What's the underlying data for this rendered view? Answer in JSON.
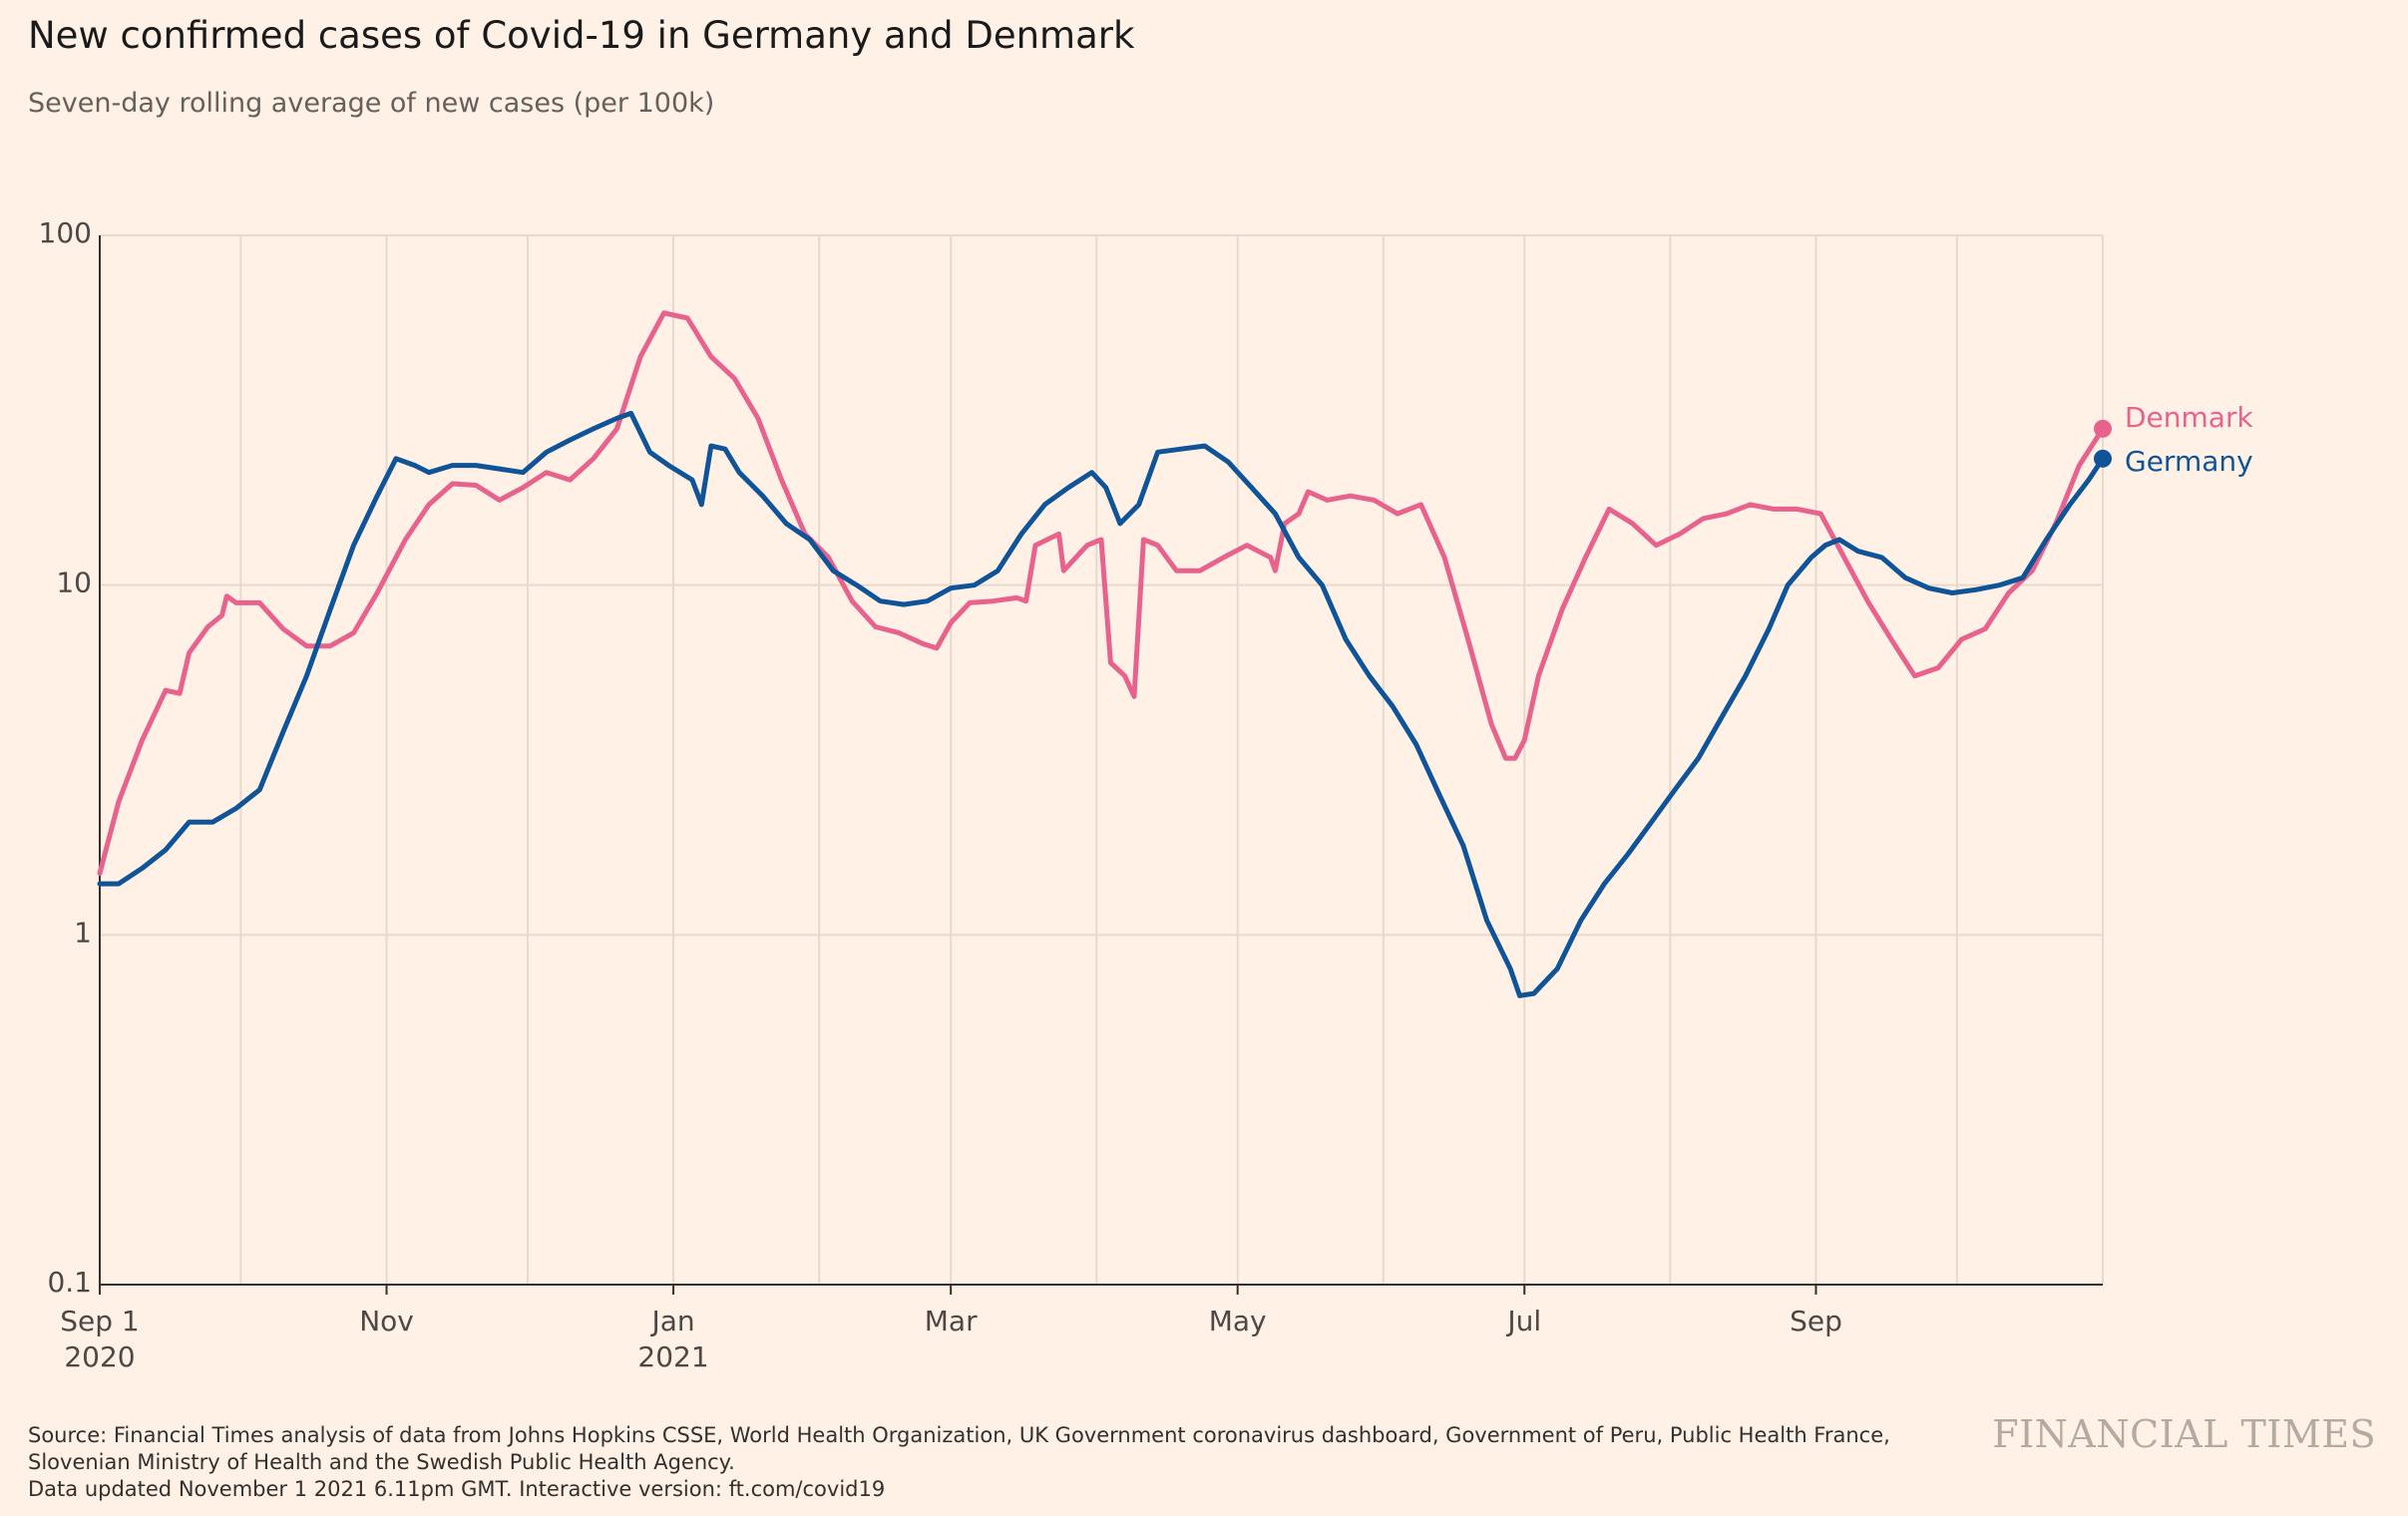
{
  "title": "New confirmed cases of Covid-19 in Germany and Denmark",
  "subtitle": "Seven-day rolling average of new cases (per 100k)",
  "source": "Source: Financial Times analysis of data from Johns Hopkins CSSE, World Health Organization, UK Government coronavirus dashboard, Government of Peru, Public Health France, Slovenian Ministry of Health and the Swedish Public Health Agency.",
  "updated": "Data updated November 1 2021 6.11pm GMT. Interactive version: ft.com/covid19",
  "brand": "FINANCIAL TIMES",
  "colors": {
    "germany": "#0f5499",
    "denmark": "#e8628e",
    "grid": "#e6d9ce",
    "axis": "#33302e",
    "tick_text": "#4d4845",
    "background": "#fff1e5"
  },
  "chart_data": {
    "type": "line",
    "x_type": "date",
    "xlim": [
      "2020-09-01",
      "2021-11-01"
    ],
    "y_scale": "log",
    "ylim": [
      0.1,
      100
    ],
    "y_ticks": [
      {
        "value": 100,
        "label": "100"
      },
      {
        "value": 10,
        "label": "10"
      },
      {
        "value": 1,
        "label": "1"
      },
      {
        "value": 0.1,
        "label": "0.1"
      }
    ],
    "x_ticks": [
      {
        "date": "2020-09-01",
        "label": "Sep 1",
        "sub": "2020"
      },
      {
        "date": "2020-11-01",
        "label": "Nov",
        "sub": ""
      },
      {
        "date": "2021-01-01",
        "label": "Jan",
        "sub": "2021"
      },
      {
        "date": "2021-03-01",
        "label": "Mar",
        "sub": ""
      },
      {
        "date": "2021-05-01",
        "label": "May",
        "sub": ""
      },
      {
        "date": "2021-07-01",
        "label": "Jul",
        "sub": ""
      },
      {
        "date": "2021-09-01",
        "label": "Sep",
        "sub": ""
      }
    ],
    "gridline_dates": [
      "2020-10-01",
      "2020-11-01",
      "2020-12-01",
      "2021-01-01",
      "2021-02-01",
      "2021-03-01",
      "2021-04-01",
      "2021-05-01",
      "2021-06-01",
      "2021-07-01",
      "2021-08-01",
      "2021-09-01",
      "2021-10-01",
      "2021-11-01"
    ],
    "grid": true,
    "legend": "end-of-line labels",
    "series": [
      {
        "name": "Denmark",
        "color": "#e8628e",
        "points": [
          [
            "2020-09-01",
            1.5
          ],
          [
            "2020-09-05",
            2.4
          ],
          [
            "2020-09-10",
            3.6
          ],
          [
            "2020-09-15",
            5.0
          ],
          [
            "2020-09-18",
            4.9
          ],
          [
            "2020-09-20",
            6.4
          ],
          [
            "2020-09-24",
            7.6
          ],
          [
            "2020-09-27",
            8.2
          ],
          [
            "2020-09-28",
            9.3
          ],
          [
            "2020-09-30",
            8.9
          ],
          [
            "2020-10-05",
            8.9
          ],
          [
            "2020-10-10",
            7.5
          ],
          [
            "2020-10-15",
            6.7
          ],
          [
            "2020-10-20",
            6.7
          ],
          [
            "2020-10-25",
            7.3
          ],
          [
            "2020-10-30",
            9.5
          ],
          [
            "2020-11-05",
            13.5
          ],
          [
            "2020-11-10",
            17.0
          ],
          [
            "2020-11-15",
            19.5
          ],
          [
            "2020-11-20",
            19.3
          ],
          [
            "2020-11-25",
            17.5
          ],
          [
            "2020-11-30",
            19.0
          ],
          [
            "2020-12-05",
            21.0
          ],
          [
            "2020-12-10",
            20.0
          ],
          [
            "2020-12-15",
            23.0
          ],
          [
            "2020-12-20",
            28.0
          ],
          [
            "2020-12-25",
            45.0
          ],
          [
            "2020-12-30",
            60.0
          ],
          [
            "2021-01-04",
            58.0
          ],
          [
            "2021-01-09",
            45.0
          ],
          [
            "2021-01-14",
            39.0
          ],
          [
            "2021-01-19",
            30.0
          ],
          [
            "2021-01-24",
            20.0
          ],
          [
            "2021-01-29",
            14.0
          ],
          [
            "2021-02-03",
            12.0
          ],
          [
            "2021-02-08",
            9.0
          ],
          [
            "2021-02-13",
            7.6
          ],
          [
            "2021-02-18",
            7.3
          ],
          [
            "2021-02-23",
            6.8
          ],
          [
            "2021-02-26",
            6.6
          ],
          [
            "2021-03-01",
            7.8
          ],
          [
            "2021-03-05",
            8.9
          ],
          [
            "2021-03-10",
            9.0
          ],
          [
            "2021-03-15",
            9.2
          ],
          [
            "2021-03-17",
            9.0
          ],
          [
            "2021-03-19",
            13.0
          ],
          [
            "2021-03-24",
            14.0
          ],
          [
            "2021-03-25",
            11.0
          ],
          [
            "2021-03-30",
            13.0
          ],
          [
            "2021-04-02",
            13.5
          ],
          [
            "2021-04-04",
            6.0
          ],
          [
            "2021-04-07",
            5.5
          ],
          [
            "2021-04-09",
            4.8
          ],
          [
            "2021-04-11",
            13.5
          ],
          [
            "2021-04-14",
            13.0
          ],
          [
            "2021-04-18",
            11.0
          ],
          [
            "2021-04-23",
            11.0
          ],
          [
            "2021-04-28",
            12.0
          ],
          [
            "2021-05-03",
            13.0
          ],
          [
            "2021-05-08",
            12.0
          ],
          [
            "2021-05-09",
            11.0
          ],
          [
            "2021-05-11",
            15.0
          ],
          [
            "2021-05-14",
            16.0
          ],
          [
            "2021-05-16",
            18.5
          ],
          [
            "2021-05-20",
            17.5
          ],
          [
            "2021-05-25",
            18.0
          ],
          [
            "2021-05-30",
            17.5
          ],
          [
            "2021-06-04",
            16.0
          ],
          [
            "2021-06-09",
            17.0
          ],
          [
            "2021-06-14",
            12.0
          ],
          [
            "2021-06-19",
            7.0
          ],
          [
            "2021-06-24",
            4.0
          ],
          [
            "2021-06-27",
            3.2
          ],
          [
            "2021-06-29",
            3.2
          ],
          [
            "2021-07-01",
            3.6
          ],
          [
            "2021-07-04",
            5.5
          ],
          [
            "2021-07-09",
            8.5
          ],
          [
            "2021-07-14",
            12.0
          ],
          [
            "2021-07-19",
            16.5
          ],
          [
            "2021-07-24",
            15.0
          ],
          [
            "2021-07-29",
            13.0
          ],
          [
            "2021-08-03",
            14.0
          ],
          [
            "2021-08-08",
            15.5
          ],
          [
            "2021-08-13",
            16.0
          ],
          [
            "2021-08-18",
            17.0
          ],
          [
            "2021-08-23",
            16.5
          ],
          [
            "2021-08-28",
            16.5
          ],
          [
            "2021-09-02",
            16.0
          ],
          [
            "2021-09-07",
            12.0
          ],
          [
            "2021-09-12",
            9.0
          ],
          [
            "2021-09-17",
            7.0
          ],
          [
            "2021-09-22",
            5.5
          ],
          [
            "2021-09-27",
            5.8
          ],
          [
            "2021-10-02",
            7.0
          ],
          [
            "2021-10-07",
            7.5
          ],
          [
            "2021-10-12",
            9.5
          ],
          [
            "2021-10-17",
            11.0
          ],
          [
            "2021-10-22",
            15.0
          ],
          [
            "2021-10-27",
            22.0
          ],
          [
            "2021-11-01",
            28.0
          ]
        ]
      },
      {
        "name": "Germany",
        "color": "#0f5499",
        "points": [
          [
            "2020-09-01",
            1.4
          ],
          [
            "2020-09-05",
            1.4
          ],
          [
            "2020-09-10",
            1.55
          ],
          [
            "2020-09-15",
            1.75
          ],
          [
            "2020-09-20",
            2.1
          ],
          [
            "2020-09-25",
            2.1
          ],
          [
            "2020-09-30",
            2.3
          ],
          [
            "2020-10-05",
            2.6
          ],
          [
            "2020-10-10",
            3.8
          ],
          [
            "2020-10-15",
            5.5
          ],
          [
            "2020-10-20",
            8.5
          ],
          [
            "2020-10-25",
            13.0
          ],
          [
            "2020-10-30",
            18.0
          ],
          [
            "2020-11-03",
            23.0
          ],
          [
            "2020-11-07",
            22.0
          ],
          [
            "2020-11-10",
            21.0
          ],
          [
            "2020-11-15",
            22.0
          ],
          [
            "2020-11-20",
            22.0
          ],
          [
            "2020-11-25",
            21.5
          ],
          [
            "2020-11-30",
            21.0
          ],
          [
            "2020-12-05",
            24.0
          ],
          [
            "2020-12-10",
            26.0
          ],
          [
            "2020-12-15",
            28.0
          ],
          [
            "2020-12-20",
            30.0
          ],
          [
            "2020-12-23",
            31.0
          ],
          [
            "2020-12-27",
            24.0
          ],
          [
            "2020-12-31",
            22.0
          ],
          [
            "2021-01-05",
            20.0
          ],
          [
            "2021-01-07",
            17.0
          ],
          [
            "2021-01-09",
            25.0
          ],
          [
            "2021-01-12",
            24.5
          ],
          [
            "2021-01-15",
            21.0
          ],
          [
            "2021-01-20",
            18.0
          ],
          [
            "2021-01-25",
            15.0
          ],
          [
            "2021-01-30",
            13.5
          ],
          [
            "2021-02-04",
            11.0
          ],
          [
            "2021-02-09",
            10.0
          ],
          [
            "2021-02-14",
            9.0
          ],
          [
            "2021-02-19",
            8.8
          ],
          [
            "2021-02-24",
            9.0
          ],
          [
            "2021-03-01",
            9.8
          ],
          [
            "2021-03-06",
            10.0
          ],
          [
            "2021-03-11",
            11.0
          ],
          [
            "2021-03-16",
            14.0
          ],
          [
            "2021-03-21",
            17.0
          ],
          [
            "2021-03-26",
            19.0
          ],
          [
            "2021-03-31",
            21.0
          ],
          [
            "2021-04-03",
            19.0
          ],
          [
            "2021-04-06",
            15.0
          ],
          [
            "2021-04-10",
            17.0
          ],
          [
            "2021-04-14",
            24.0
          ],
          [
            "2021-04-19",
            24.5
          ],
          [
            "2021-04-24",
            25.0
          ],
          [
            "2021-04-29",
            22.5
          ],
          [
            "2021-05-04",
            19.0
          ],
          [
            "2021-05-09",
            16.0
          ],
          [
            "2021-05-14",
            12.0
          ],
          [
            "2021-05-19",
            10.0
          ],
          [
            "2021-05-24",
            7.0
          ],
          [
            "2021-05-29",
            5.5
          ],
          [
            "2021-06-03",
            4.5
          ],
          [
            "2021-06-08",
            3.5
          ],
          [
            "2021-06-13",
            2.5
          ],
          [
            "2021-06-18",
            1.8
          ],
          [
            "2021-06-23",
            1.1
          ],
          [
            "2021-06-28",
            0.8
          ],
          [
            "2021-06-30",
            0.67
          ],
          [
            "2021-07-03",
            0.68
          ],
          [
            "2021-07-08",
            0.8
          ],
          [
            "2021-07-13",
            1.1
          ],
          [
            "2021-07-18",
            1.4
          ],
          [
            "2021-07-23",
            1.7
          ],
          [
            "2021-07-28",
            2.1
          ],
          [
            "2021-08-02",
            2.6
          ],
          [
            "2021-08-07",
            3.2
          ],
          [
            "2021-08-12",
            4.2
          ],
          [
            "2021-08-17",
            5.5
          ],
          [
            "2021-08-22",
            7.5
          ],
          [
            "2021-08-26",
            10.0
          ],
          [
            "2021-08-31",
            12.0
          ],
          [
            "2021-09-03",
            13.0
          ],
          [
            "2021-09-06",
            13.5
          ],
          [
            "2021-09-10",
            12.5
          ],
          [
            "2021-09-15",
            12.0
          ],
          [
            "2021-09-20",
            10.5
          ],
          [
            "2021-09-25",
            9.8
          ],
          [
            "2021-09-30",
            9.5
          ],
          [
            "2021-10-05",
            9.7
          ],
          [
            "2021-10-10",
            10.0
          ],
          [
            "2021-10-15",
            10.5
          ],
          [
            "2021-10-20",
            13.5
          ],
          [
            "2021-10-25",
            17.0
          ],
          [
            "2021-10-29",
            20.0
          ],
          [
            "2021-11-01",
            23.0
          ]
        ]
      }
    ]
  }
}
